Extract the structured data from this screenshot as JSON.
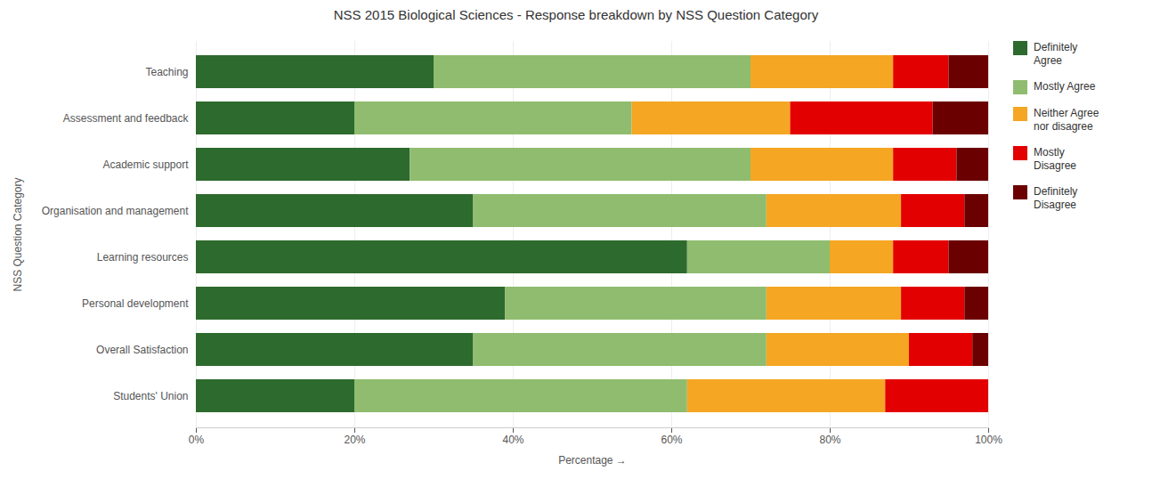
{
  "chart_data": {
    "type": "bar",
    "orientation": "horizontal",
    "stacked": true,
    "title": "NSS 2015 Biological Sciences - Response breakdown by NSS Question Category",
    "xlabel": "Percentage",
    "ylabel": "NSS Question Category",
    "categories": [
      "Teaching",
      "Assessment and feedback",
      "Academic support",
      "Organisation and management",
      "Learning resources",
      "Personal development",
      "Overall Satisfaction",
      "Students' Union"
    ],
    "series": [
      {
        "name": "Definitely Agree",
        "color": "#2d6a2d",
        "values": [
          30,
          20,
          27,
          35,
          62,
          39,
          35,
          20
        ]
      },
      {
        "name": "Mostly Agree",
        "color": "#8fbc6e",
        "values": [
          40,
          35,
          43,
          37,
          18,
          33,
          37,
          42
        ]
      },
      {
        "name": "Neither Agree nor disagree",
        "color": "#f5a623",
        "values": [
          18,
          20,
          18,
          17,
          8,
          17,
          18,
          25
        ]
      },
      {
        "name": "Mostly Disagree",
        "color": "#e30000",
        "values": [
          7,
          18,
          8,
          8,
          7,
          8,
          8,
          13
        ]
      },
      {
        "name": "Definitely Disagree",
        "color": "#6b0000",
        "values": [
          5,
          7,
          4,
          3,
          5,
          3,
          2,
          0
        ]
      }
    ],
    "xlim": [
      0,
      100
    ],
    "xticks": [
      {
        "value": 0,
        "label": "0%"
      },
      {
        "value": 20,
        "label": "20%"
      },
      {
        "value": 40,
        "label": "40%"
      },
      {
        "value": 60,
        "label": "60%"
      },
      {
        "value": 80,
        "label": "80%"
      },
      {
        "value": 100,
        "label": "100%"
      }
    ],
    "grid": true,
    "legend": "right"
  }
}
